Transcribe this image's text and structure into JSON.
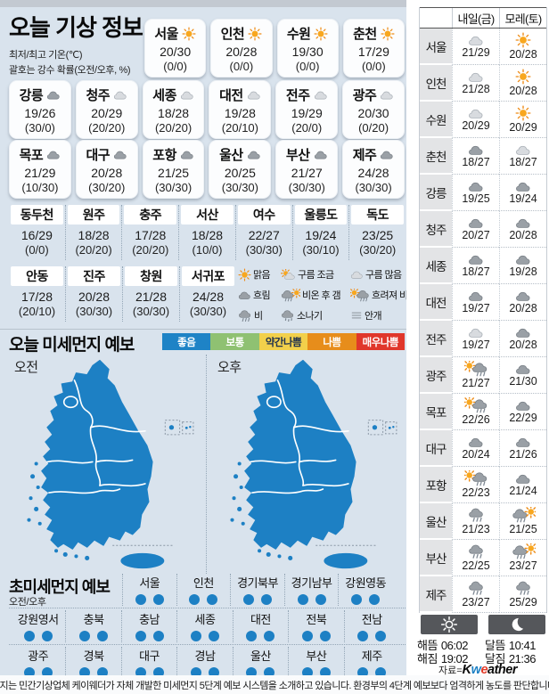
{
  "today": {
    "title": "오늘 기상 정보",
    "subtitle1": "최저/최고 기온(℃)",
    "subtitle2": "괄호는 강수 확률(오전/오후, %)",
    "row1": [
      {
        "city": "서울",
        "icon": "sun",
        "temp": "20/30",
        "rain": "(0/0)"
      },
      {
        "city": "인천",
        "icon": "sun",
        "temp": "20/28",
        "rain": "(0/0)"
      },
      {
        "city": "수원",
        "icon": "sun",
        "temp": "19/30",
        "rain": "(0/0)"
      },
      {
        "city": "춘천",
        "icon": "sun",
        "temp": "17/29",
        "rain": "(0/0)"
      }
    ],
    "row2": [
      {
        "city": "강릉",
        "icon": "cloud-dark",
        "temp": "19/26",
        "rain": "(30/0)"
      },
      {
        "city": "청주",
        "icon": "cloud-light",
        "temp": "20/29",
        "rain": "(20/20)"
      },
      {
        "city": "세종",
        "icon": "cloud-light",
        "temp": "18/28",
        "rain": "(20/20)"
      },
      {
        "city": "대전",
        "icon": "cloud-light",
        "temp": "19/28",
        "rain": "(20/10)"
      },
      {
        "city": "전주",
        "icon": "cloud-light",
        "temp": "19/29",
        "rain": "(20/0)"
      },
      {
        "city": "광주",
        "icon": "cloud-light",
        "temp": "20/30",
        "rain": "(0/20)"
      }
    ],
    "row3": [
      {
        "city": "목포",
        "icon": "cloud-dark",
        "temp": "21/29",
        "rain": "(10/30)"
      },
      {
        "city": "대구",
        "icon": "cloud-dark",
        "temp": "20/28",
        "rain": "(30/20)"
      },
      {
        "city": "포항",
        "icon": "cloud-dark",
        "temp": "21/25",
        "rain": "(30/30)"
      },
      {
        "city": "울산",
        "icon": "cloud-dark",
        "temp": "20/25",
        "rain": "(30/30)"
      },
      {
        "city": "부산",
        "icon": "cloud-dark",
        "temp": "21/27",
        "rain": "(30/30)"
      },
      {
        "city": "제주",
        "icon": "cloud-dark",
        "temp": "24/28",
        "rain": "(30/30)"
      }
    ],
    "tableA": [
      {
        "city": "동두천",
        "temp": "16/29",
        "rain": "(0/0)"
      },
      {
        "city": "원주",
        "temp": "18/28",
        "rain": "(20/20)"
      },
      {
        "city": "충주",
        "temp": "17/28",
        "rain": "(20/20)"
      },
      {
        "city": "서산",
        "temp": "18/28",
        "rain": "(10/0)"
      },
      {
        "city": "여수",
        "temp": "22/27",
        "rain": "(30/30)"
      },
      {
        "city": "울릉도",
        "temp": "19/24",
        "rain": "(30/10)"
      },
      {
        "city": "독도",
        "temp": "23/25",
        "rain": "(30/20)"
      }
    ],
    "tableB": [
      {
        "city": "안동",
        "temp": "17/28",
        "rain": "(20/10)"
      },
      {
        "city": "진주",
        "temp": "20/28",
        "rain": "(30/30)"
      },
      {
        "city": "창원",
        "temp": "21/28",
        "rain": "(30/30)"
      },
      {
        "city": "서귀포",
        "temp": "24/28",
        "rain": "(30/30)"
      }
    ],
    "legend": [
      {
        "icon": "sun",
        "label": "맑음"
      },
      {
        "icon": "sun-cloud",
        "label": "구름 조금"
      },
      {
        "icon": "cloud-light",
        "label": "구름 많음"
      },
      {
        "icon": "cloud-dark",
        "label": "흐림"
      },
      {
        "icon": "rain-then-sun",
        "label": "비온 후 갬"
      },
      {
        "icon": "sun-then-rain",
        "label": "흐려져 비"
      },
      {
        "icon": "rain",
        "label": "비"
      },
      {
        "icon": "shower",
        "label": "소나기"
      },
      {
        "icon": "fog",
        "label": "안개"
      }
    ]
  },
  "dust": {
    "title": "오늘 미세먼지 예보",
    "levels": [
      {
        "label": "좋음",
        "color": "#1e83c6",
        "text": "#ffffff"
      },
      {
        "label": "보통",
        "color": "#8fc172",
        "text": "#ffffff"
      },
      {
        "label": "약간나쁨",
        "color": "#f2d04b",
        "text": "#20324f"
      },
      {
        "label": "나쁨",
        "color": "#e78d1b",
        "text": "#ffffff"
      },
      {
        "label": "매우나쁨",
        "color": "#e0372b",
        "text": "#ffffff"
      }
    ],
    "am_label": "오전",
    "pm_label": "오후",
    "map_color": "#1d80c4"
  },
  "ultrafine": {
    "title": "초미세먼지 예보",
    "subtitle": "오전/오후",
    "dot_color": "#1d80c4",
    "row1": [
      {
        "name": "서울",
        "levels": [
          "좋음",
          "좋음"
        ]
      },
      {
        "name": "인천",
        "levels": [
          "좋음",
          "좋음"
        ]
      },
      {
        "name": "경기북부",
        "levels": [
          "좋음",
          "좋음"
        ]
      },
      {
        "name": "경기남부",
        "levels": [
          "좋음",
          "좋음"
        ]
      },
      {
        "name": "강원영동",
        "levels": [
          "좋음",
          "좋음"
        ]
      }
    ],
    "row2": [
      {
        "name": "강원영서",
        "levels": [
          "좋음",
          "좋음"
        ]
      },
      {
        "name": "충북",
        "levels": [
          "좋음",
          "좋음"
        ]
      },
      {
        "name": "충남",
        "levels": [
          "좋음",
          "좋음"
        ]
      },
      {
        "name": "세종",
        "levels": [
          "좋음",
          "좋음"
        ]
      },
      {
        "name": "대전",
        "levels": [
          "좋음",
          "좋음"
        ]
      },
      {
        "name": "전북",
        "levels": [
          "좋음",
          "좋음"
        ]
      },
      {
        "name": "전남",
        "levels": [
          "좋음",
          "좋음"
        ]
      }
    ],
    "row3": [
      {
        "name": "광주",
        "levels": [
          "좋음",
          "좋음"
        ]
      },
      {
        "name": "경북",
        "levels": [
          "좋음",
          "좋음"
        ]
      },
      {
        "name": "대구",
        "levels": [
          "좋음",
          "좋음"
        ]
      },
      {
        "name": "경남",
        "levels": [
          "좋음",
          "좋음"
        ]
      },
      {
        "name": "울산",
        "levels": [
          "좋음",
          "좋음"
        ]
      },
      {
        "name": "부산",
        "levels": [
          "좋음",
          "좋음"
        ]
      },
      {
        "name": "제주",
        "levels": [
          "좋음",
          "좋음"
        ]
      }
    ]
  },
  "tomorrow": {
    "col1": "내일(금)",
    "col2": "모레(토)",
    "rows": [
      {
        "city": "서울",
        "d1": {
          "icon": "cloud-light",
          "temp": "21/29"
        },
        "d2": {
          "icon": "sun",
          "temp": "20/28"
        }
      },
      {
        "city": "인천",
        "d1": {
          "icon": "cloud-light",
          "temp": "21/28"
        },
        "d2": {
          "icon": "sun",
          "temp": "20/28"
        }
      },
      {
        "city": "수원",
        "d1": {
          "icon": "cloud-light",
          "temp": "20/29"
        },
        "d2": {
          "icon": "sun",
          "temp": "20/29"
        }
      },
      {
        "city": "춘천",
        "d1": {
          "icon": "cloud-dark",
          "temp": "18/27"
        },
        "d2": {
          "icon": "cloud-light",
          "temp": "18/27"
        }
      },
      {
        "city": "강릉",
        "d1": {
          "icon": "cloud-dark",
          "temp": "19/25"
        },
        "d2": {
          "icon": "cloud-dark",
          "temp": "19/24"
        }
      },
      {
        "city": "청주",
        "d1": {
          "icon": "cloud-dark",
          "temp": "20/27"
        },
        "d2": {
          "icon": "cloud-dark",
          "temp": "20/28"
        }
      },
      {
        "city": "세종",
        "d1": {
          "icon": "cloud-dark",
          "temp": "18/27"
        },
        "d2": {
          "icon": "cloud-dark",
          "temp": "19/28"
        }
      },
      {
        "city": "대전",
        "d1": {
          "icon": "cloud-dark",
          "temp": "19/27"
        },
        "d2": {
          "icon": "cloud-dark",
          "temp": "20/28"
        }
      },
      {
        "city": "전주",
        "d1": {
          "icon": "cloud-light",
          "temp": "19/27"
        },
        "d2": {
          "icon": "cloud-dark",
          "temp": "20/28"
        }
      },
      {
        "city": "광주",
        "d1": {
          "icon": "sun-then-rain",
          "temp": "21/27"
        },
        "d2": {
          "icon": "cloud-dark",
          "temp": "21/30"
        }
      },
      {
        "city": "목포",
        "d1": {
          "icon": "sun-then-rain",
          "temp": "22/26"
        },
        "d2": {
          "icon": "cloud-dark",
          "temp": "22/29"
        }
      },
      {
        "city": "대구",
        "d1": {
          "icon": "cloud-dark",
          "temp": "20/24"
        },
        "d2": {
          "icon": "cloud-dark",
          "temp": "21/26"
        }
      },
      {
        "city": "포항",
        "d1": {
          "icon": "sun-then-rain",
          "temp": "22/23"
        },
        "d2": {
          "icon": "cloud-dark",
          "temp": "21/24"
        }
      },
      {
        "city": "울산",
        "d1": {
          "icon": "rain",
          "temp": "21/23"
        },
        "d2": {
          "icon": "rain-then-sun",
          "temp": "21/25"
        }
      },
      {
        "city": "부산",
        "d1": {
          "icon": "rain",
          "temp": "22/25"
        },
        "d2": {
          "icon": "rain-then-sun",
          "temp": "23/27"
        }
      },
      {
        "city": "제주",
        "d1": {
          "icon": "rain",
          "temp": "23/27"
        },
        "d2": {
          "icon": "rain",
          "temp": "25/29"
        }
      }
    ]
  },
  "sun_moon": {
    "sunrise_label": "해뜸",
    "sunrise": "06:02",
    "sunset_label": "해짐",
    "sunset": "19:02",
    "moonrise_label": "달뜸",
    "moonrise": "10:41",
    "moonset_label": "달짐",
    "moonset": "21:36"
  },
  "source": {
    "prefix": "자료=",
    "logo": "Kweather"
  },
  "footer": "본지는 민간기상업체 케이웨더가 자체 개발한 미세먼지 5단계 예보 시스템을 소개하고 있습니다. 환경부의 4단계 예보보다 엄격하게 농도를 판단합니다."
}
